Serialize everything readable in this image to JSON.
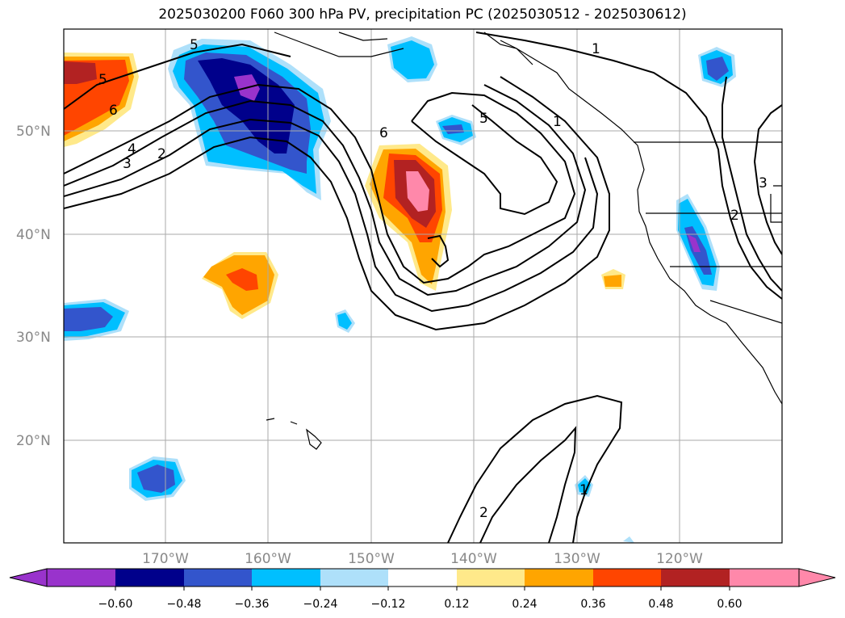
{
  "title": "2025030200 F060 300 hPa PV, precipitation PC (2025030512 - 2025030612)",
  "map": {
    "lat_labels": [
      "50°N",
      "40°N",
      "30°N",
      "20°N"
    ],
    "lon_labels": [
      "170°W",
      "160°W",
      "150°W",
      "140°W",
      "130°W",
      "120°W"
    ],
    "contour_labels": [
      "5",
      "5",
      "6",
      "4",
      "3",
      "2",
      "5",
      "6",
      "1",
      "1",
      "3",
      "2",
      "2",
      "1"
    ]
  },
  "colorbar": {
    "ticks": [
      "−0.60",
      "−0.48",
      "−0.36",
      "−0.24",
      "−0.12",
      "0.12",
      "0.24",
      "0.36",
      "0.48",
      "0.60"
    ],
    "colors": [
      "#9933cc",
      "#00008b",
      "#3355cc",
      "#00bfff",
      "#aee0fa",
      "#ffffff",
      "#ffe98a",
      "#ffa500",
      "#ff4500",
      "#b22222",
      "#ff88aa",
      "#ff88aa"
    ]
  }
}
